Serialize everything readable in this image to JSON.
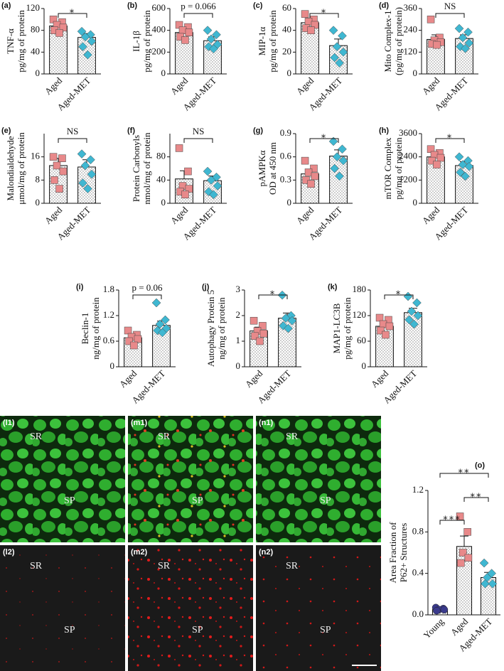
{
  "chart_data": [
    {
      "type": "bar",
      "label": "(a)",
      "ylabel": [
        "TNF-α",
        "pg/mg of protein"
      ],
      "categories": [
        "Aged",
        "Aged-MET"
      ],
      "colors": [
        "#e8898a",
        "#3fb7d1"
      ],
      "markers": [
        "square",
        "diamond"
      ],
      "values": [
        88,
        67
      ],
      "errors": [
        5,
        7
      ],
      "points": [
        [
          100,
          95,
          90,
          85,
          80,
          75
        ],
        [
          78,
          72,
          68,
          60,
          50,
          35
        ]
      ],
      "significance": [
        "*"
      ],
      "ylim": [
        0,
        120
      ],
      "yticks": [
        0,
        40,
        80,
        120
      ]
    },
    {
      "type": "bar",
      "label": "(b)",
      "ylabel": [
        "IL-1β",
        "pg/mg of protein"
      ],
      "categories": [
        "Aged",
        "Aged-MET"
      ],
      "colors": [
        "#e8898a",
        "#3fb7d1"
      ],
      "markers": [
        "square",
        "diamond"
      ],
      "values": [
        380,
        305
      ],
      "errors": [
        30,
        35
      ],
      "points": [
        [
          450,
          430,
          400,
          380,
          340,
          310
        ],
        [
          400,
          360,
          320,
          270,
          250,
          230
        ]
      ],
      "significance": [
        "p = 0.066"
      ],
      "ylim": [
        0,
        600
      ],
      "yticks": [
        0,
        200,
        400,
        600
      ]
    },
    {
      "type": "bar",
      "label": "(c)",
      "ylabel": [
        "MIP-1α",
        "pg/mg of protein"
      ],
      "categories": [
        "Aged",
        "Aged-MET"
      ],
      "colors": [
        "#e8898a",
        "#3fb7d1"
      ],
      "markers": [
        "square",
        "diamond"
      ],
      "values": [
        47,
        26
      ],
      "errors": [
        4,
        6
      ],
      "points": [
        [
          55,
          50,
          48,
          45,
          42,
          40
        ],
        [
          40,
          35,
          25,
          20,
          15,
          10
        ]
      ],
      "significance": [
        "*"
      ],
      "ylim": [
        0,
        60
      ],
      "yticks": [
        0,
        20,
        40,
        60
      ]
    },
    {
      "type": "bar",
      "label": "(d)",
      "ylabel": [
        "Mito Complex-1",
        "(pg/mg of protein)"
      ],
      "categories": [
        "Aged",
        "Aged-MET"
      ],
      "colors": [
        "#e8898a",
        "#3fb7d1"
      ],
      "markers": [
        "square",
        "diamond"
      ],
      "values": [
        190,
        195
      ],
      "errors": [
        25,
        20
      ],
      "points": [
        [
          300,
          200,
          185,
          175,
          165,
          160
        ],
        [
          250,
          230,
          200,
          170,
          150,
          140
        ]
      ],
      "significance": [
        "NS"
      ],
      "ylim": [
        0,
        360
      ],
      "yticks": [
        0,
        120,
        240,
        360
      ]
    },
    {
      "type": "bar",
      "label": "(e)",
      "ylabel": [
        "Malondialdehyde",
        "μmol/mg of protein"
      ],
      "categories": [
        "Aged",
        "Aged-MET"
      ],
      "colors": [
        "#e8898a",
        "#3fb7d1"
      ],
      "markers": [
        "square",
        "diamond"
      ],
      "values": [
        13,
        12.5
      ],
      "errors": [
        2.5,
        2.5
      ],
      "points": [
        [
          16,
          15.5,
          13,
          11,
          8,
          5
        ],
        [
          17,
          15,
          13,
          10,
          7,
          5
        ]
      ],
      "significance": [
        "NS"
      ],
      "ylim": [
        0,
        24
      ],
      "yticks": [
        0,
        8,
        16
      ]
    },
    {
      "type": "bar",
      "label": "(f)",
      "ylabel": [
        "Protein Carbonyls",
        "nmol/mg of protein"
      ],
      "categories": [
        "Aged",
        "Aged-MET"
      ],
      "colors": [
        "#e8898a",
        "#3fb7d1"
      ],
      "markers": [
        "square",
        "diamond"
      ],
      "values": [
        42,
        39
      ],
      "errors": [
        14,
        8
      ],
      "points": [
        [
          95,
          55,
          30,
          25,
          20,
          15
        ],
        [
          55,
          45,
          40,
          30,
          20,
          15
        ]
      ],
      "significance": [
        "NS"
      ],
      "ylim": [
        0,
        120
      ],
      "yticks": [
        0,
        40,
        80
      ]
    },
    {
      "type": "bar",
      "label": "(g)",
      "ylabel": [
        "pAMPKα",
        "OD at 450 nm"
      ],
      "categories": [
        "Aged",
        "Aged-MET"
      ],
      "colors": [
        "#e8898a",
        "#3fb7d1"
      ],
      "markers": [
        "square",
        "diamond"
      ],
      "values": [
        0.38,
        0.61
      ],
      "errors": [
        0.05,
        0.08
      ],
      "points": [
        [
          0.55,
          0.45,
          0.4,
          0.35,
          0.3,
          0.25
        ],
        [
          0.8,
          0.7,
          0.6,
          0.55,
          0.45,
          0.35
        ]
      ],
      "significance": [
        "*"
      ],
      "ylim": [
        0,
        0.9
      ],
      "yticks": [
        0,
        0.3,
        0.6,
        0.9
      ]
    },
    {
      "type": "bar",
      "label": "(h)",
      "ylabel": [
        "mTOR Complex",
        "pg/mg of protein"
      ],
      "categories": [
        "Aged",
        "Aged-MET"
      ],
      "colors": [
        "#e8898a",
        "#3fb7d1"
      ],
      "markers": [
        "square",
        "diamond"
      ],
      "values": [
        2400,
        1950
      ],
      "errors": [
        150,
        200
      ],
      "points": [
        [
          2800,
          2600,
          2500,
          2350,
          2200,
          2000
        ],
        [
          2400,
          2200,
          2000,
          1900,
          1600,
          1400
        ]
      ],
      "significance": [
        "*"
      ],
      "ylim": [
        0,
        3600
      ],
      "yticks": [
        0,
        1200,
        2400,
        3600
      ]
    },
    {
      "type": "bar",
      "label": "(i)",
      "ylabel": [
        "Beclin-1",
        "ng/mg of protein"
      ],
      "categories": [
        "Aged",
        "Aged-MET"
      ],
      "colors": [
        "#e8898a",
        "#3fb7d1"
      ],
      "markers": [
        "square",
        "diamond"
      ],
      "values": [
        0.68,
        0.97
      ],
      "errors": [
        0.07,
        0.1
      ],
      "points": [
        [
          0.85,
          0.75,
          0.7,
          0.65,
          0.6,
          0.5
        ],
        [
          1.5,
          1.1,
          1.0,
          0.9,
          0.85,
          0.8
        ]
      ],
      "significance": [
        "p = 0.06"
      ],
      "ylim": [
        0,
        1.8
      ],
      "yticks": [
        0,
        0.6,
        1.2,
        1.8
      ]
    },
    {
      "type": "bar",
      "label": "(j)",
      "ylabel": [
        "Autophagy Protein 5",
        "ng/mg of protein"
      ],
      "categories": [
        "Aged",
        "Aged-MET"
      ],
      "colors": [
        "#e8898a",
        "#3fb7d1"
      ],
      "markers": [
        "square",
        "diamond"
      ],
      "values": [
        1.4,
        1.9
      ],
      "errors": [
        0.15,
        0.2
      ],
      "points": [
        [
          1.8,
          1.6,
          1.4,
          1.3,
          1.2,
          1.0
        ],
        [
          2.8,
          2.0,
          1.9,
          1.8,
          1.6,
          1.5
        ]
      ],
      "significance": [
        "*"
      ],
      "ylim": [
        0,
        3
      ],
      "yticks": [
        0,
        1,
        2,
        3
      ]
    },
    {
      "type": "bar",
      "label": "(k)",
      "ylabel": [
        "MAP1-LC3B",
        "pg/mg of protein"
      ],
      "categories": [
        "Aged",
        "Aged-MET"
      ],
      "colors": [
        "#e8898a",
        "#3fb7d1"
      ],
      "markers": [
        "square",
        "diamond"
      ],
      "values": [
        95,
        127
      ],
      "errors": [
        8,
        10
      ],
      "points": [
        [
          115,
          110,
          100,
          95,
          85,
          75
        ],
        [
          165,
          150,
          130,
          120,
          110,
          100
        ]
      ],
      "significance": [
        "*"
      ],
      "ylim": [
        0,
        180
      ],
      "yticks": [
        0,
        60,
        120,
        180
      ]
    },
    {
      "type": "bar",
      "label": "(o)",
      "ylabel": [
        "Area Fraction of",
        "P62+ Structures"
      ],
      "categories": [
        "Young",
        "Aged",
        "Aged-MET"
      ],
      "colors": [
        "#3a3a8c",
        "#e8898a",
        "#3fb7d1"
      ],
      "markers": [
        "circle",
        "square",
        "diamond"
      ],
      "values": [
        0.05,
        0.66,
        0.36
      ],
      "errors": [
        0.01,
        0.1,
        0.05
      ],
      "points": [
        [
          0.07,
          0.06,
          0.05,
          0.05,
          0.04
        ],
        [
          0.95,
          0.8,
          0.6,
          0.55,
          0.5
        ],
        [
          0.5,
          0.4,
          0.36,
          0.3,
          0.3
        ]
      ],
      "significance": [
        "***",
        "**",
        "**"
      ],
      "ylim": [
        0,
        1.2
      ],
      "yticks": [
        {
          "value": 0,
          "label": "0.0"
        },
        0.4,
        0.8,
        1.2
      ]
    }
  ],
  "images": [
    {
      "label": "(l1)",
      "regions": [
        "SR",
        "SP"
      ]
    },
    {
      "label": "(m1)",
      "regions": [
        "SR",
        "SP"
      ]
    },
    {
      "label": "(n1)",
      "regions": [
        "SR",
        "SP"
      ]
    },
    {
      "label": "(l2)",
      "regions": [
        "SR",
        "SP"
      ]
    },
    {
      "label": "(m2)",
      "regions": [
        "SR",
        "SP"
      ]
    },
    {
      "label": "(n2)",
      "regions": [
        "SR",
        "SP"
      ]
    }
  ]
}
